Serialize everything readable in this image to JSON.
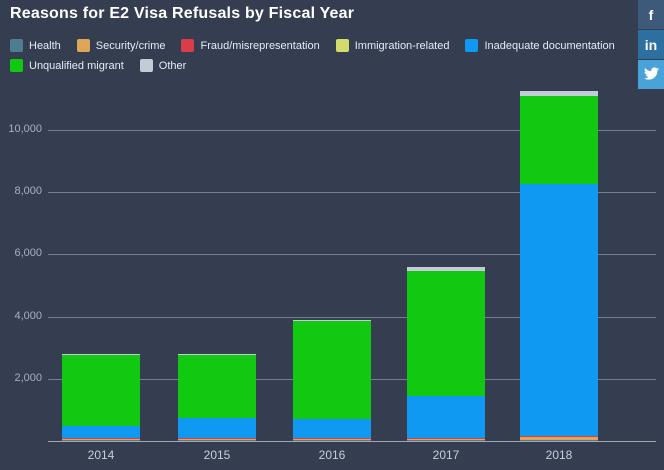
{
  "header": {
    "title": "Reasons for E2 Visa Refusals by Fiscal Year"
  },
  "social": {
    "buttons": [
      {
        "id": "facebook",
        "label": "f",
        "icon": "facebook-icon",
        "color": "#3d5a7b"
      },
      {
        "id": "linkedin",
        "label": "in",
        "icon": "linkedin-icon",
        "color": "#2d6f9e"
      },
      {
        "id": "twitter",
        "label": "",
        "icon": "twitter-bird-icon",
        "color": "#4aa3d8"
      }
    ]
  },
  "chart_data": {
    "type": "bar",
    "stacked": true,
    "title": "Reasons for E2 Visa Refusals by Fiscal Year",
    "categories": [
      "2014",
      "2015",
      "2016",
      "2017",
      "2018"
    ],
    "series": [
      {
        "name": "Health",
        "color": "#4e7d92",
        "values": [
          40,
          20,
          15,
          15,
          20
        ]
      },
      {
        "name": "Security/crime",
        "color": "#dfa558",
        "values": [
          25,
          50,
          60,
          50,
          100
        ]
      },
      {
        "name": "Fraud/misrepresentation",
        "color": "#d93d4a",
        "values": [
          15,
          20,
          25,
          25,
          40
        ]
      },
      {
        "name": "Immigration-related",
        "color": "#d4db6d",
        "values": [
          10,
          10,
          10,
          10,
          10
        ]
      },
      {
        "name": "Inadequate documentation",
        "color": "#0f99f2",
        "values": [
          400,
          640,
          600,
          1350,
          8080
        ]
      },
      {
        "name": "Unqualified migrant",
        "color": "#12c912",
        "values": [
          2280,
          2010,
          3150,
          4000,
          2840
        ]
      },
      {
        "name": "Other",
        "color": "#c4cad6",
        "values": [
          30,
          50,
          40,
          130,
          160
        ]
      }
    ],
    "totals": [
      2800,
      2800,
      3900,
      5580,
      11250
    ],
    "ylim": [
      0,
      11300
    ],
    "yticks": [
      {
        "value": 2000,
        "label": "2,000"
      },
      {
        "value": 4000,
        "label": "4,000"
      },
      {
        "value": 6000,
        "label": "6,000"
      },
      {
        "value": 8000,
        "label": "8,000"
      },
      {
        "value": 10000,
        "label": "10,000"
      }
    ],
    "grid": true,
    "legend_position": "top",
    "background_color": "#353e51"
  }
}
